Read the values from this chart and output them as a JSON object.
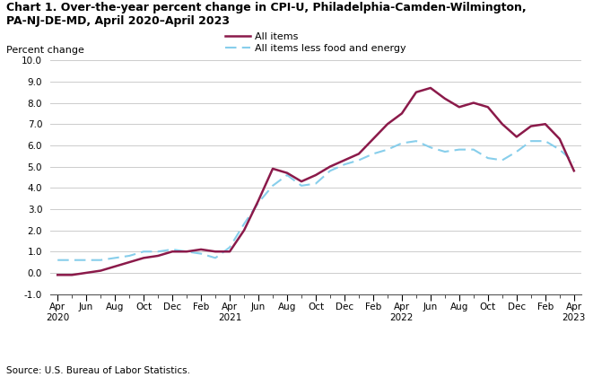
{
  "title_line1": "Chart 1. Over-the-year percent change in CPI-U, Philadelphia-Camden-Wilmington,",
  "title_line2": "PA-NJ-DE-MD, April 2020–April 2023",
  "ylabel": "Percent change",
  "source": "Source: U.S. Bureau of Labor Statistics.",
  "all_items_label": "All items",
  "core_items_label": "All items less food and energy",
  "all_items_color": "#8B1A4A",
  "core_items_color": "#87CEEB",
  "all_items_linewidth": 1.8,
  "core_items_linewidth": 1.5,
  "all_items_values": [
    -0.1,
    -0.1,
    0.0,
    0.1,
    0.3,
    0.5,
    0.7,
    0.8,
    1.0,
    1.0,
    1.1,
    1.0,
    1.0,
    2.0,
    3.4,
    4.9,
    4.7,
    4.3,
    4.6,
    5.0,
    5.3,
    5.6,
    6.3,
    7.0,
    7.5,
    8.5,
    8.7,
    8.2,
    7.8,
    8.0,
    7.8,
    7.0,
    6.4,
    6.9,
    7.0,
    6.3,
    4.8
  ],
  "core_items_values": [
    0.6,
    0.6,
    0.6,
    0.6,
    0.7,
    0.8,
    1.0,
    1.0,
    1.1,
    1.0,
    0.9,
    0.7,
    1.2,
    2.3,
    3.3,
    4.1,
    4.6,
    4.1,
    4.2,
    4.8,
    5.1,
    5.3,
    5.6,
    5.8,
    6.1,
    6.2,
    5.9,
    5.7,
    5.8,
    5.8,
    5.4,
    5.3,
    5.7,
    6.2,
    6.2,
    5.8,
    5.2
  ],
  "tick_positions": [
    0,
    2,
    4,
    6,
    8,
    10,
    12,
    14,
    16,
    18,
    20,
    22,
    24,
    26,
    28,
    30,
    32,
    34,
    36
  ],
  "tick_labels": [
    "Apr\n2020",
    "Jun",
    "Aug",
    "Oct",
    "Dec",
    "Feb",
    "Apr\n2021",
    "Jun",
    "Aug",
    "Oct",
    "Dec",
    "Feb",
    "Apr\n2022",
    "Jun",
    "Aug",
    "Oct",
    "Dec",
    "Feb",
    "Apr\n2023"
  ],
  "ylim": [
    -1.0,
    10.0
  ],
  "yticks": [
    -1.0,
    0.0,
    1.0,
    2.0,
    3.0,
    4.0,
    5.0,
    6.0,
    7.0,
    8.0,
    9.0,
    10.0
  ],
  "bg_color": "#ffffff",
  "grid_color": "#cccccc"
}
